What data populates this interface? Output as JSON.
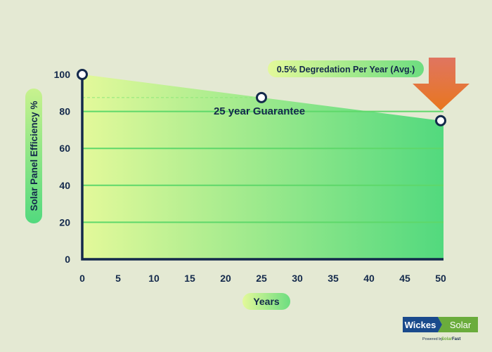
{
  "chart_data": {
    "type": "area",
    "title": "",
    "xlabel": "Years",
    "ylabel": "Solar Panel Efficiency %",
    "xlim": [
      0,
      50
    ],
    "ylim": [
      0,
      100
    ],
    "x_ticks": [
      "0",
      "5",
      "10",
      "15",
      "20",
      "25",
      "30",
      "35",
      "40",
      "45",
      "50"
    ],
    "y_ticks": [
      "0",
      "20",
      "40",
      "60",
      "80",
      "100"
    ],
    "grid": true,
    "points": [
      {
        "x": 0,
        "y": 100
      },
      {
        "x": 25,
        "y": 87.5
      },
      {
        "x": 50,
        "y": 75
      }
    ],
    "annotations": {
      "guarantee": "25 year Guarantee",
      "degradation": "0.5% Degredation Per Year (Avg.)"
    },
    "colors": {
      "fill_start": "#e3f99a",
      "fill_end": "#52d97e",
      "grid": "#5ed86a",
      "axis": "#13294b",
      "arrow_top": "#e07560",
      "arrow_bottom": "#e8761f"
    }
  },
  "logo": {
    "left": "Wickes",
    "right": "Solar",
    "powered": "Powered by",
    "brand1": "Solar",
    "brand2": "Fast",
    "colors": {
      "blue": "#1a4a8c",
      "green": "#6aac3c"
    }
  }
}
